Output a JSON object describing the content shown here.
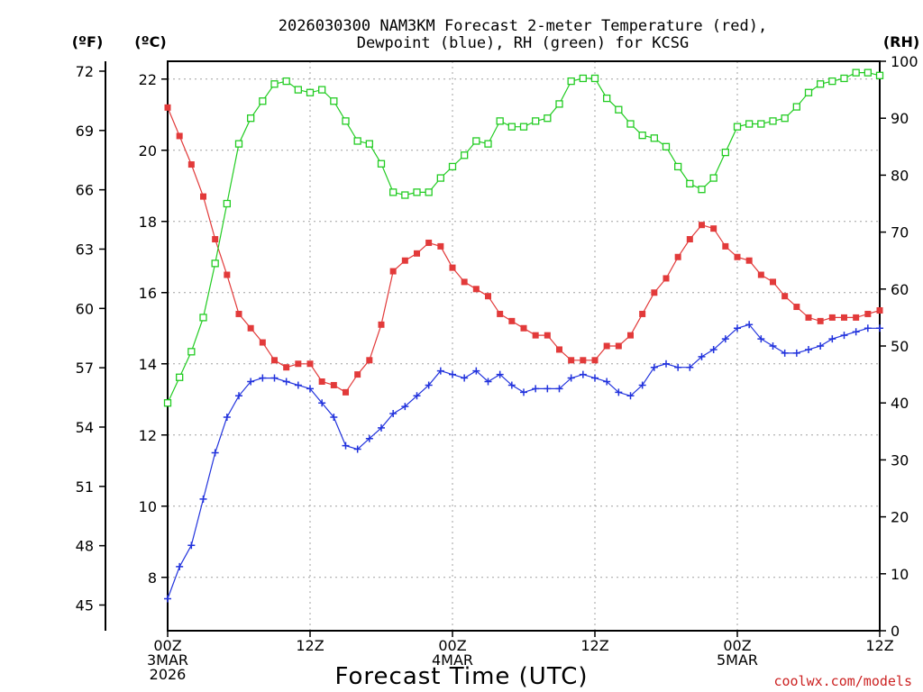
{
  "chart_data": {
    "type": "line",
    "title_lines": [
      "2026030300 NAM3KM Forecast 2-meter Temperature (red),",
      "Dewpoint (blue), RH (green) for KCSG"
    ],
    "xlabel": "Forecast Time (UTC)",
    "credit": "coolwx.com/models",
    "left_outer_unit": "(ºF)",
    "left_inner_unit": "(ºC)",
    "right_unit": "(RH)",
    "xlim": [
      0,
      60
    ],
    "ylim_c": [
      6.5,
      22.5
    ],
    "ylim_rh": [
      0,
      100
    ],
    "x_ticks": [
      {
        "x": 0,
        "lines": [
          "00Z",
          "3MAR",
          "2026"
        ]
      },
      {
        "x": 12,
        "lines": [
          "12Z"
        ]
      },
      {
        "x": 24,
        "lines": [
          "00Z",
          "4MAR"
        ]
      },
      {
        "x": 36,
        "lines": [
          "12Z"
        ]
      },
      {
        "x": 48,
        "lines": [
          "00Z",
          "5MAR"
        ]
      },
      {
        "x": 60,
        "lines": [
          "12Z"
        ]
      }
    ],
    "c_ticks": [
      8,
      10,
      12,
      14,
      16,
      18,
      20,
      22
    ],
    "f_ticks": [
      45,
      48,
      51,
      54,
      57,
      60,
      63,
      66,
      69,
      72
    ],
    "rh_ticks": [
      0,
      10,
      20,
      30,
      40,
      50,
      60,
      70,
      80,
      90,
      100
    ],
    "series": [
      {
        "name": "Temperature",
        "unit": "C",
        "color": "#e23a3a",
        "marker": "filled-square",
        "x": [
          0,
          1,
          2,
          3,
          4,
          5,
          6,
          7,
          8,
          9,
          10,
          11,
          12,
          13,
          14,
          15,
          16,
          17,
          18,
          19,
          20,
          21,
          22,
          23,
          24,
          25,
          26,
          27,
          28,
          29,
          30,
          31,
          32,
          33,
          34,
          35,
          36,
          37,
          38,
          39,
          40,
          41,
          42,
          43,
          44,
          45,
          46,
          47,
          48,
          49,
          50,
          51,
          52,
          53,
          54,
          55,
          56,
          57,
          58,
          59,
          60
        ],
        "values": [
          21.2,
          20.4,
          19.6,
          18.7,
          17.5,
          16.5,
          15.4,
          15.0,
          14.6,
          14.1,
          13.9,
          14.0,
          14.0,
          13.5,
          13.4,
          13.2,
          13.7,
          14.1,
          15.1,
          16.6,
          16.9,
          17.1,
          17.4,
          17.3,
          16.7,
          16.3,
          16.1,
          15.9,
          15.4,
          15.2,
          15.0,
          14.8,
          14.8,
          14.4,
          14.1,
          14.1,
          14.1,
          14.5,
          14.5,
          14.8,
          15.4,
          16.0,
          16.4,
          17.0,
          17.5,
          17.9,
          17.8,
          17.3,
          17.0,
          16.9,
          16.5,
          16.3,
          15.9,
          15.6,
          15.3,
          15.2,
          15.3,
          15.3,
          15.3,
          15.4,
          15.5
        ]
      },
      {
        "name": "Dewpoint",
        "unit": "C",
        "color": "#2233dd",
        "marker": "plus",
        "x": [
          0,
          1,
          2,
          3,
          4,
          5,
          6,
          7,
          8,
          9,
          10,
          11,
          12,
          13,
          14,
          15,
          16,
          17,
          18,
          19,
          20,
          21,
          22,
          23,
          24,
          25,
          26,
          27,
          28,
          29,
          30,
          31,
          32,
          33,
          34,
          35,
          36,
          37,
          38,
          39,
          40,
          41,
          42,
          43,
          44,
          45,
          46,
          47,
          48,
          49,
          50,
          51,
          52,
          53,
          54,
          55,
          56,
          57,
          58,
          59,
          60
        ],
        "values": [
          7.4,
          8.3,
          8.9,
          10.2,
          11.5,
          12.5,
          13.1,
          13.5,
          13.6,
          13.6,
          13.5,
          13.4,
          13.3,
          12.9,
          12.5,
          11.7,
          11.6,
          11.9,
          12.2,
          12.6,
          12.8,
          13.1,
          13.4,
          13.8,
          13.7,
          13.6,
          13.8,
          13.5,
          13.7,
          13.4,
          13.2,
          13.3,
          13.3,
          13.3,
          13.6,
          13.7,
          13.6,
          13.5,
          13.2,
          13.1,
          13.4,
          13.9,
          14.0,
          13.9,
          13.9,
          14.2,
          14.4,
          14.7,
          15.0,
          15.1,
          14.7,
          14.5,
          14.3,
          14.3,
          14.4,
          14.5,
          14.7,
          14.8,
          14.9,
          15.0,
          15.0
        ]
      },
      {
        "name": "RH",
        "unit": "%",
        "color": "#22cc22",
        "marker": "open-square",
        "x": [
          0,
          1,
          2,
          3,
          4,
          5,
          6,
          7,
          8,
          9,
          10,
          11,
          12,
          13,
          14,
          15,
          16,
          17,
          18,
          19,
          20,
          21,
          22,
          23,
          24,
          25,
          26,
          27,
          28,
          29,
          30,
          31,
          32,
          33,
          34,
          35,
          36,
          37,
          38,
          39,
          40,
          41,
          42,
          43,
          44,
          45,
          46,
          47,
          48,
          49,
          50,
          51,
          52,
          53,
          54,
          55,
          56,
          57,
          58,
          59,
          60
        ],
        "values": [
          40,
          44.5,
          49,
          55,
          64.5,
          75,
          85.5,
          90,
          93,
          96,
          96.5,
          95,
          94.5,
          95,
          93,
          89.5,
          86,
          85.5,
          82,
          77,
          76.5,
          77,
          77,
          79.5,
          81.5,
          83.5,
          86,
          85.5,
          89.5,
          88.5,
          88.5,
          89.5,
          90,
          92.5,
          96.5,
          97,
          97,
          93.5,
          91.5,
          89,
          87,
          86.5,
          85,
          81.5,
          78.5,
          77.5,
          79.5,
          84,
          88.5,
          89,
          89,
          89.5,
          90,
          92,
          94.5,
          96,
          96.5,
          97,
          98,
          98,
          97.5
        ]
      }
    ]
  }
}
